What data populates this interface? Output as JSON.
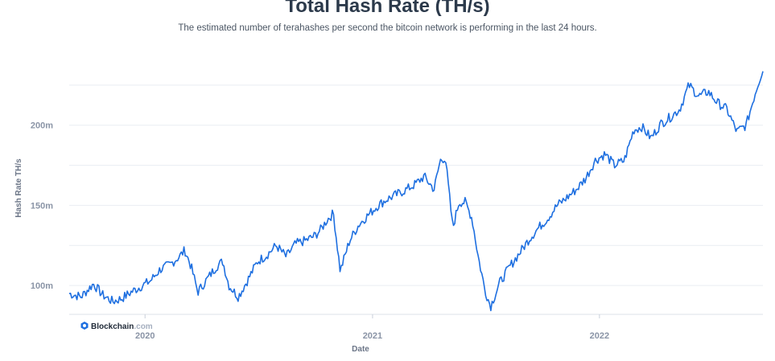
{
  "chart_data": {
    "type": "line",
    "title": "Total Hash Rate (TH/s)",
    "subtitle": "The estimated number of terahashes per second the bitcoin network is performing in the last 24 hours.",
    "xlabel": "Date",
    "ylabel": "Hash Rate TH/s",
    "x_ticks": [
      "2020",
      "2021",
      "2022"
    ],
    "y_ticks": [
      "100m",
      "150m",
      "200m"
    ],
    "ylim": [
      82,
      240
    ],
    "xlim": [
      "2019-09-01",
      "2022-09-21"
    ],
    "grid": "horizontal",
    "line_color": "#1e6fe0",
    "series": [
      {
        "x": [
          "2019-09-01",
          "2019-09-20",
          "2019-10-10",
          "2019-10-25",
          "2019-11-10",
          "2019-11-25",
          "2019-12-10",
          "2019-12-28",
          "2020-01-10",
          "2020-01-25",
          "2020-02-10",
          "2020-02-25",
          "2020-03-05",
          "2020-03-15",
          "2020-03-26",
          "2020-04-10",
          "2020-04-25",
          "2020-05-05",
          "2020-05-15",
          "2020-05-30",
          "2020-06-15",
          "2020-06-30",
          "2020-07-15",
          "2020-07-30",
          "2020-08-15",
          "2020-08-30",
          "2020-09-15",
          "2020-09-30",
          "2020-10-10",
          "2020-10-20",
          "2020-10-30",
          "2020-11-10",
          "2020-11-25",
          "2020-12-10",
          "2020-12-25",
          "2021-01-10",
          "2021-01-25",
          "2021-02-10",
          "2021-02-25",
          "2021-03-10",
          "2021-03-25",
          "2021-04-10",
          "2021-04-20",
          "2021-04-28",
          "2021-05-10",
          "2021-05-20",
          "2021-05-30",
          "2021-06-10",
          "2021-06-20",
          "2021-07-01",
          "2021-07-10",
          "2021-07-25",
          "2021-08-10",
          "2021-08-25",
          "2021-09-10",
          "2021-09-25",
          "2021-10-10",
          "2021-10-25",
          "2021-11-10",
          "2021-11-25",
          "2021-12-10",
          "2021-12-25",
          "2022-01-10",
          "2022-01-25",
          "2022-02-10",
          "2022-02-25",
          "2022-03-10",
          "2022-03-25",
          "2022-04-10",
          "2022-04-25",
          "2022-05-10",
          "2022-05-25",
          "2022-06-10",
          "2022-06-25",
          "2022-07-10",
          "2022-07-25",
          "2022-08-10",
          "2022-08-25",
          "2022-09-10",
          "2022-09-21"
        ],
        "values": [
          95,
          93,
          101,
          94,
          90,
          92,
          96,
          100,
          103,
          110,
          113,
          118,
          122,
          112,
          96,
          104,
          112,
          115,
          100,
          93,
          104,
          115,
          119,
          125,
          118,
          126,
          128,
          131,
          135,
          141,
          145,
          109,
          128,
          138,
          144,
          150,
          154,
          157,
          160,
          163,
          168,
          160,
          178,
          180,
          136,
          152,
          152,
          142,
          118,
          97,
          87,
          102,
          112,
          120,
          129,
          136,
          142,
          150,
          155,
          160,
          167,
          178,
          182,
          175,
          178,
          197,
          199,
          192,
          201,
          205,
          210,
          225,
          218,
          221,
          214,
          210,
          196,
          200,
          222,
          235
        ]
      }
    ]
  },
  "watermark": {
    "brand": "Blockchain",
    "suffix": ".com"
  }
}
